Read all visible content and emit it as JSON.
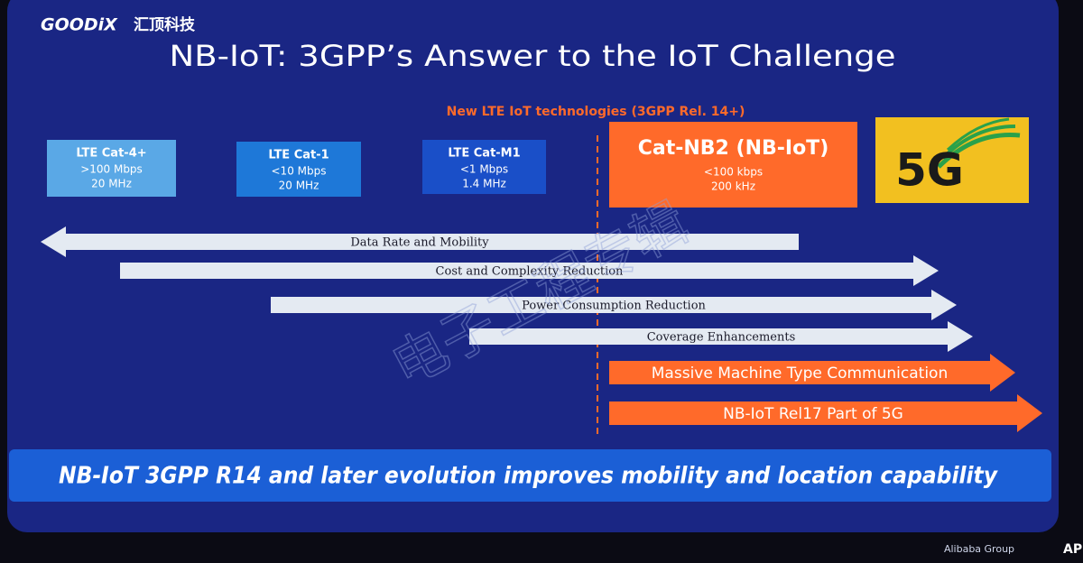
{
  "header": {
    "logo": "GOODiX",
    "company": "汇顶科技"
  },
  "title": "NB-IoT: 3GPP’s Answer to the IoT Challenge",
  "subtitle": "New LTE IoT technologies (3GPP Rel. 14+)",
  "boxes": [
    {
      "label": "LTE Cat-4+",
      "rate": ">100 Mbps",
      "bandwidth": "20 MHz"
    },
    {
      "label": "LTE Cat-1",
      "rate": "<10 Mbps",
      "bandwidth": "20 MHz"
    },
    {
      "label": "LTE Cat-M1",
      "rate": "<1 Mbps",
      "bandwidth": "1.4 MHz"
    },
    {
      "label": "Cat-NB2 (NB-IoT)",
      "rate": "<100 kbps",
      "bandwidth": "200 kHz"
    }
  ],
  "badge": "5G",
  "arrows": [
    {
      "label": "Data Rate and Mobility"
    },
    {
      "label": "Cost and Complexity Reduction"
    },
    {
      "label": "Power Consumption Reduction"
    },
    {
      "label": "Coverage Enhancements"
    },
    {
      "label": "Massive Machine Type Communication"
    },
    {
      "label": "NB-IoT Rel17 Part of 5G"
    }
  ],
  "banner": "NB-IoT 3GPP R14 and later evolution improves mobility and location capability",
  "watermark": "电子工程专辑",
  "footer": {
    "sponsor": "Alibaba Group",
    "event": "APSAR"
  }
}
